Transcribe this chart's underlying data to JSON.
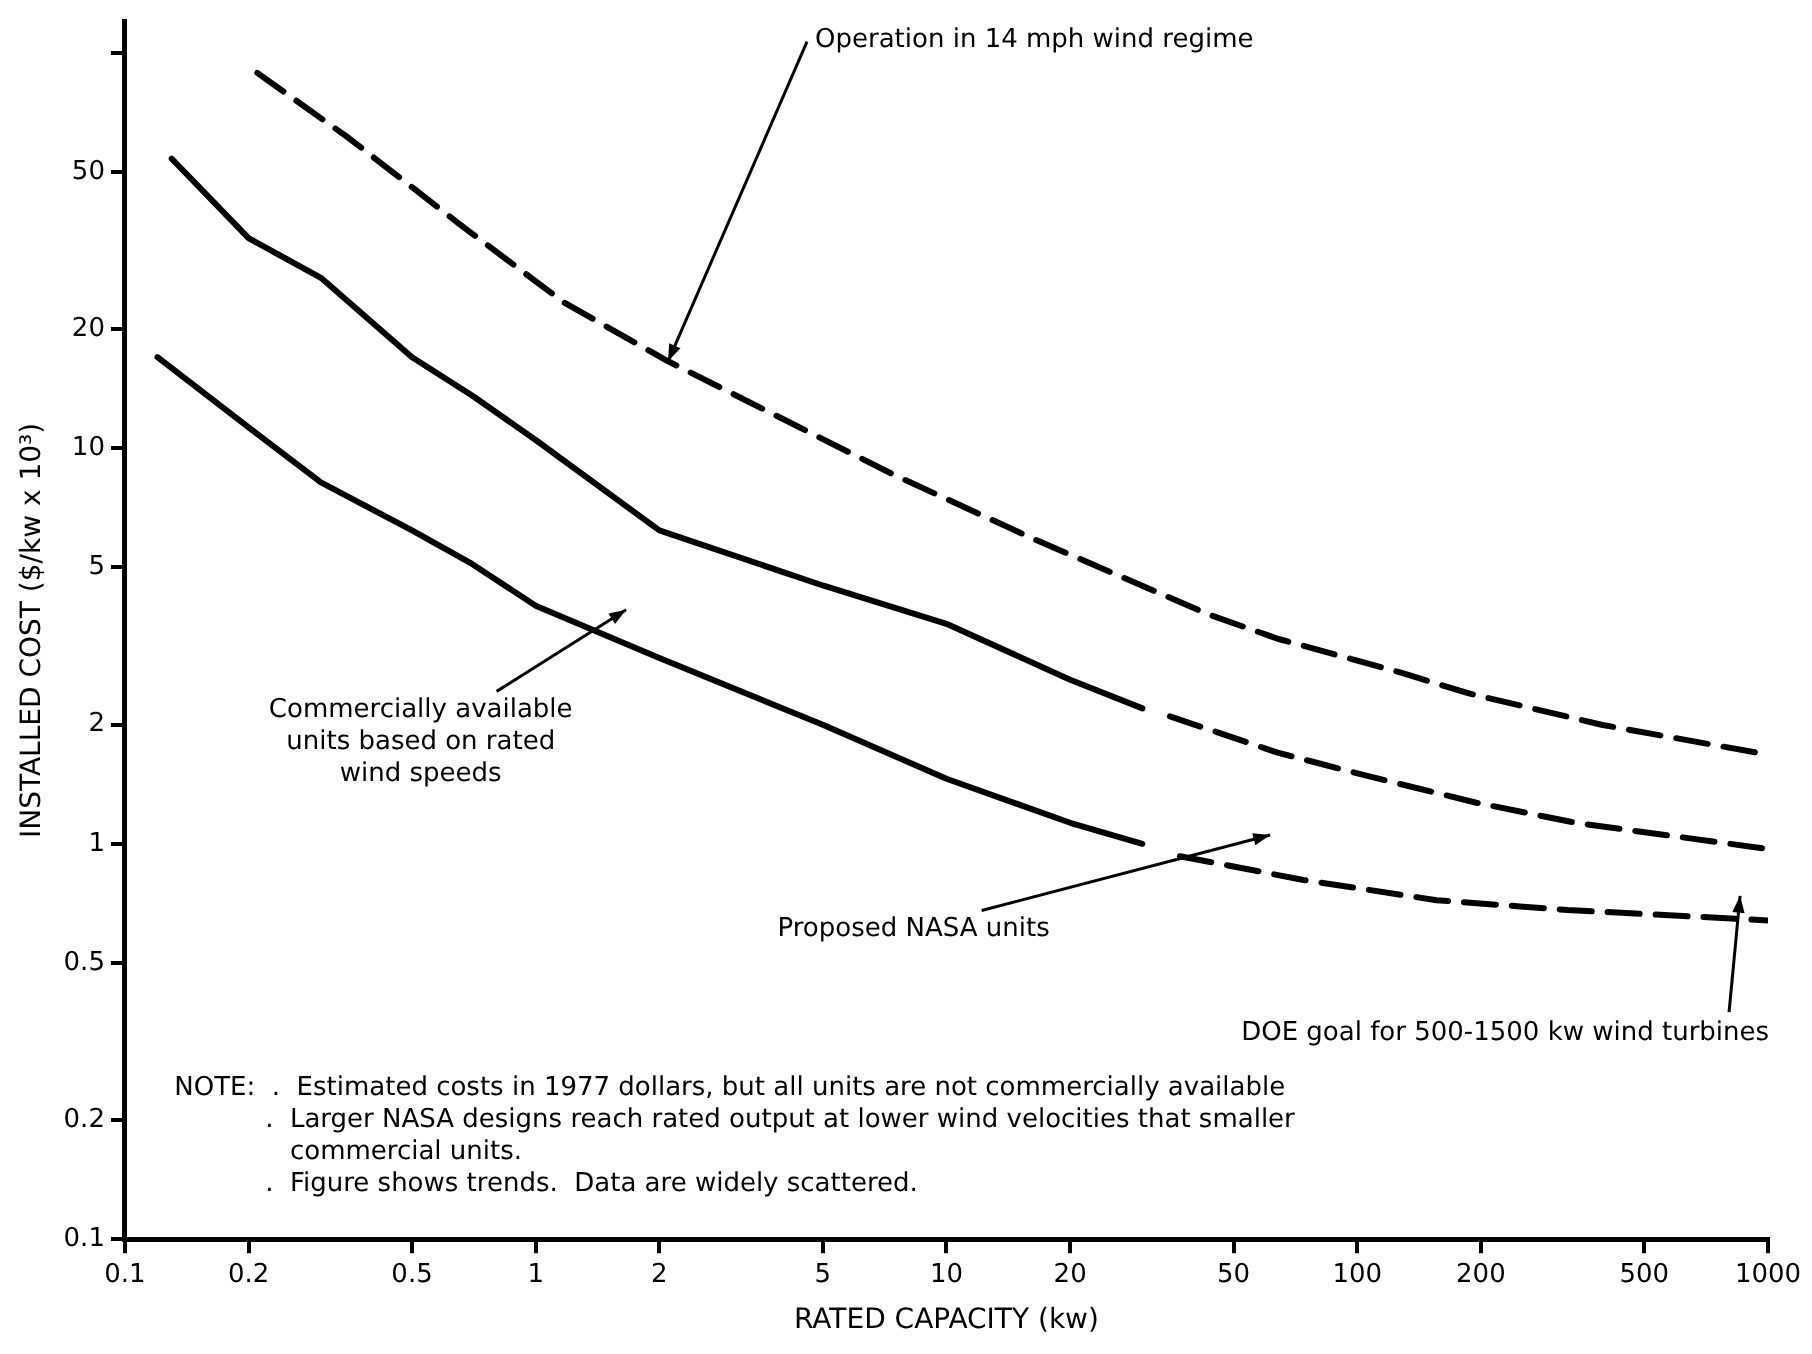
{
  "chart_data": {
    "type": "line",
    "xlabel": "RATED CAPACITY (kw)",
    "ylabel": "INSTALLED COST ($/kw x 10³)",
    "log": "xy",
    "grid": false,
    "legend": false,
    "marker": "none",
    "xlim": [
      0.1,
      1000
    ],
    "xticks": [
      0.1,
      0.2,
      0.5,
      1,
      2,
      5,
      10,
      20,
      50,
      100,
      200,
      500,
      1000
    ],
    "ylim": [
      0.1,
      120
    ],
    "yticks": [
      0.1,
      0.2,
      0.5,
      1,
      2,
      5,
      10,
      20,
      50,
      {
        "value": 100,
        "label": null
      }
    ],
    "series": [
      {
        "color": "#000000",
        "line_style": "dashed",
        "x": [
          0.21,
          0.35,
          0.65,
          1.17,
          2.1,
          7.4,
          16.3,
          43.5,
          64,
          129,
          187,
          393,
          1000
        ],
        "values": [
          89,
          61,
          37,
          23.4,
          16.6,
          8.6,
          5.9,
          3.8,
          3.3,
          2.7,
          2.4,
          2.0,
          1.68
        ]
      },
      {
        "color": "#000000",
        "line_style": "solid",
        "x": [
          0.13,
          0.2,
          0.3,
          0.5,
          0.7,
          1,
          2,
          5,
          10,
          20,
          30
        ],
        "values": [
          54,
          34,
          27,
          17,
          13.6,
          10.5,
          6.2,
          4.5,
          3.6,
          2.6,
          2.2
        ]
      },
      {
        "color": "#000000",
        "line_style": "solid",
        "x": [
          0.12,
          0.2,
          0.3,
          0.5,
          0.7,
          1,
          2,
          5,
          10,
          20,
          30
        ],
        "values": [
          17,
          11.3,
          8.2,
          6.2,
          5.1,
          4.0,
          2.95,
          2.0,
          1.46,
          1.13,
          1.0
        ]
      },
      {
        "color": "#000000",
        "line_style": "dashed",
        "x": [
          35,
          64,
          107,
          195,
          340,
          1000
        ],
        "values": [
          2.1,
          1.7,
          1.48,
          1.27,
          1.13,
          0.97
        ]
      },
      {
        "color": "#000000",
        "line_style": "dashed",
        "x": [
          37,
          74,
          156,
          325,
          1000
        ],
        "values": [
          0.93,
          0.81,
          0.72,
          0.68,
          0.64
        ]
      }
    ],
    "annotations": [
      {
        "text": "Operation in 14 mph wind regime",
        "x": 2.1,
        "y": 16.6
      },
      "Commercially available\nunits based on rated\nwind speeds",
      "Proposed NASA units",
      "DOE goal for 500-1500 kw wind turbines",
      "NOTE:  .  Estimated costs in 1977 dollars, but all units are not commercially available\n           .  Larger NASA designs reach rated output at lower wind velocities that smaller\n              commercial units.\n           .  Figure shows trends.  Data are widely scattered."
    ]
  }
}
